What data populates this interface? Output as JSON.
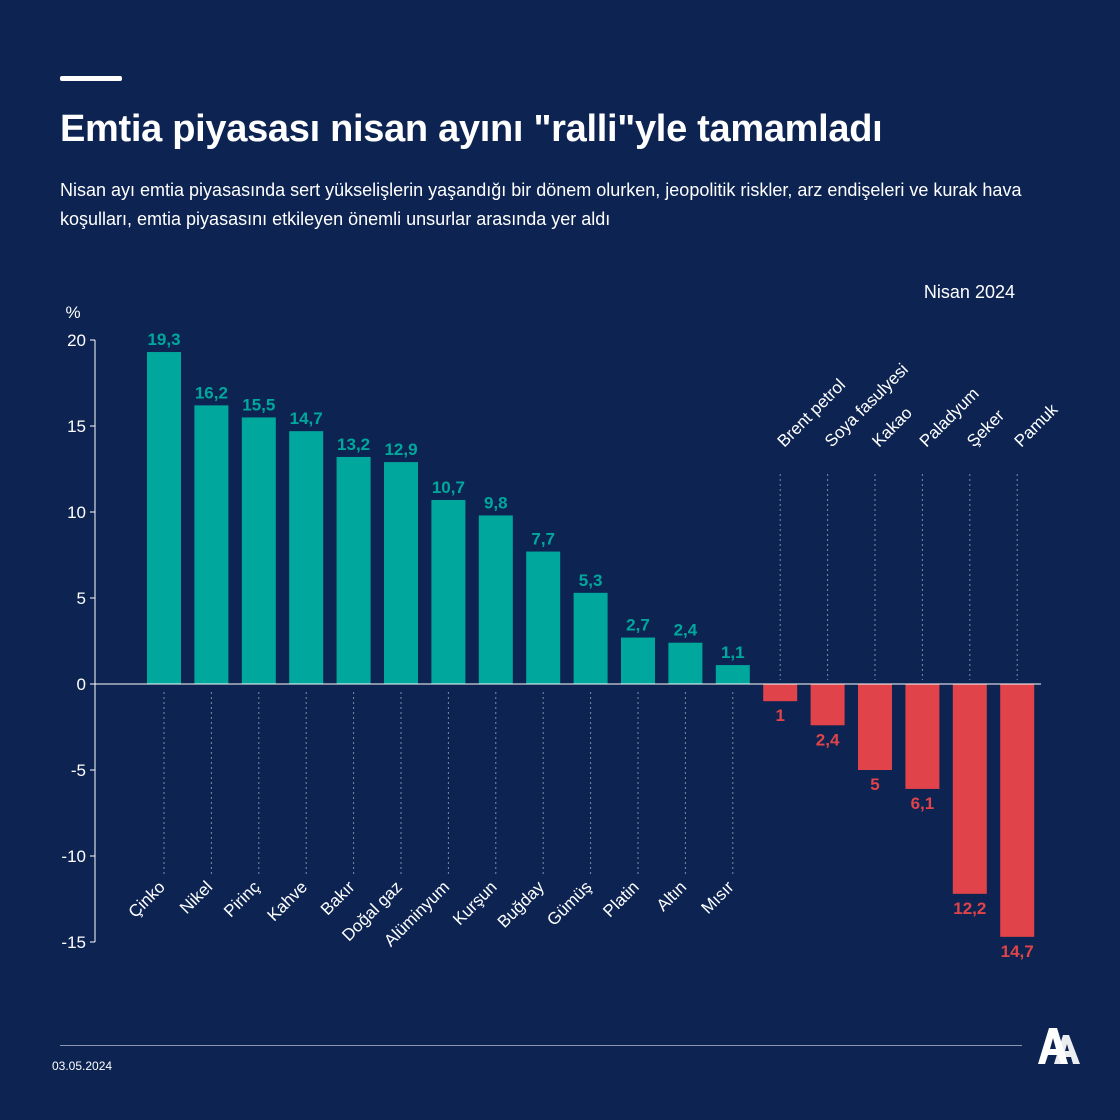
{
  "header": {
    "title": "Emtia piyasası nisan ayını \"ralli\"yle tamamladı",
    "subtitle": "Nisan ayı emtia piyasasında sert yükselişlerin yaşandığı bir dönem olurken, jeopolitik riskler, arz endişeleri ve kurak hava koşulları, emtia piyasasını etkileyen önemli unsurlar arasında yer aldı"
  },
  "footer": {
    "date": "03.05.2024",
    "logo_name": "aa-logo"
  },
  "colors": {
    "background": "#0d2452",
    "positive": "#00a79d",
    "negative": "#e04349",
    "axis": "#ffffff"
  },
  "chart_data": {
    "type": "bar",
    "period_label": "Nisan 2024",
    "ylabel": "%",
    "ylim": [
      -15,
      20
    ],
    "yticks": [
      20,
      15,
      10,
      5,
      0,
      -5,
      -10,
      -15
    ],
    "categories": [
      "Çinko",
      "Nikel",
      "Pirinç",
      "Kahve",
      "Bakır",
      "Doğal gaz",
      "Alüminyum",
      "Kurşun",
      "Buğday",
      "Gümüş",
      "Platin",
      "Altın",
      "Mısır",
      "Brent petrol",
      "Soya fasulyesi",
      "Kakao",
      "Paladyum",
      "Şeker",
      "Pamuk"
    ],
    "values": [
      19.3,
      16.2,
      15.5,
      14.7,
      13.2,
      12.9,
      10.7,
      9.8,
      7.7,
      5.3,
      2.7,
      2.4,
      1.1,
      -1,
      -2.4,
      -5,
      -6.1,
      -12.2,
      -14.7
    ],
    "value_labels": [
      "19,3",
      "16,2",
      "15,5",
      "14,7",
      "13,2",
      "12,9",
      "10,7",
      "9,8",
      "7,7",
      "5,3",
      "2,7",
      "2,4",
      "1,1",
      "1",
      "2,4",
      "5",
      "6,1",
      "12,2",
      "14,7"
    ]
  }
}
